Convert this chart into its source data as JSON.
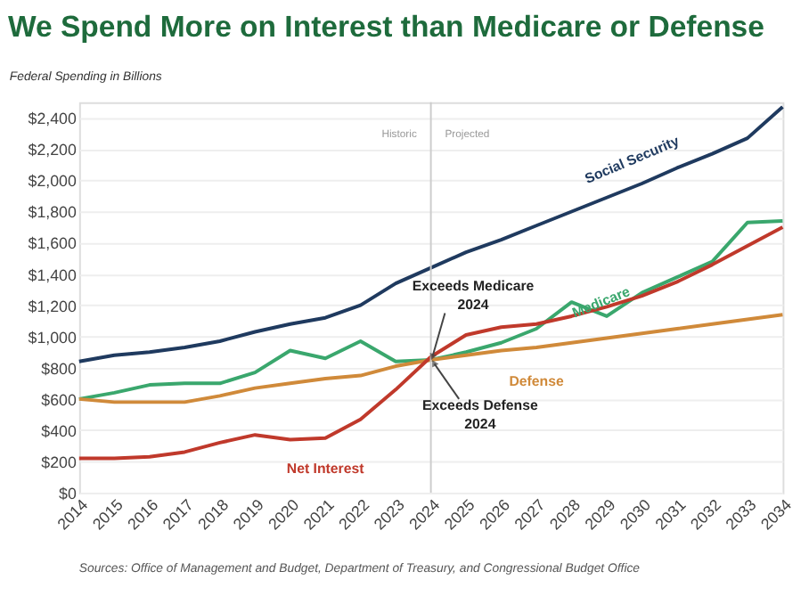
{
  "chart_data": {
    "type": "line",
    "title": "We Spend More on Interest than Medicare or Defense",
    "ylabel": "Federal Spending in Billions",
    "x": [
      2014,
      2015,
      2016,
      2017,
      2018,
      2019,
      2020,
      2021,
      2022,
      2023,
      2024,
      2025,
      2026,
      2027,
      2028,
      2029,
      2030,
      2031,
      2032,
      2033,
      2034
    ],
    "series": [
      {
        "name": "Social Security",
        "color": "#1f3a5f",
        "values": [
          840,
          880,
          900,
          930,
          970,
          1030,
          1080,
          1120,
          1200,
          1340,
          1440,
          1540,
          1620,
          1710,
          1800,
          1890,
          1980,
          2080,
          2170,
          2270,
          2470
        ]
      },
      {
        "name": "Medicare",
        "color": "#3aa76d",
        "values": [
          600,
          640,
          690,
          700,
          700,
          770,
          910,
          860,
          970,
          840,
          850,
          900,
          960,
          1050,
          1220,
          1130,
          1280,
          1380,
          1480,
          1730,
          1740
        ]
      },
      {
        "name": "Defense",
        "color": "#d08a3a",
        "values": [
          600,
          580,
          580,
          580,
          620,
          670,
          700,
          730,
          750,
          810,
          850,
          880,
          910,
          930,
          960,
          990,
          1020,
          1050,
          1080,
          1110,
          1140
        ]
      },
      {
        "name": "Net Interest",
        "color": "#c0392b",
        "values": [
          220,
          220,
          230,
          260,
          320,
          370,
          340,
          350,
          470,
          660,
          870,
          1010,
          1060,
          1080,
          1130,
          1190,
          1260,
          1350,
          1460,
          1580,
          1700
        ]
      }
    ],
    "xlim": [
      2014,
      2034
    ],
    "xticks": [
      2014,
      2015,
      2016,
      2017,
      2018,
      2019,
      2020,
      2021,
      2022,
      2023,
      2024,
      2025,
      2026,
      2027,
      2028,
      2029,
      2030,
      2031,
      2032,
      2033,
      2034
    ],
    "ylim": [
      0,
      2500
    ],
    "yticks": [
      {
        "value": 0,
        "label": "$0"
      },
      {
        "value": 200,
        "label": "$200"
      },
      {
        "value": 400,
        "label": "$400"
      },
      {
        "value": 600,
        "label": "$600"
      },
      {
        "value": 800,
        "label": "$800"
      },
      {
        "value": 1000,
        "label": "$1,000"
      },
      {
        "value": 1200,
        "label": "$1,200"
      },
      {
        "value": 1400,
        "label": "$1,400"
      },
      {
        "value": 1600,
        "label": "$1,600"
      },
      {
        "value": 1800,
        "label": "$1,800"
      },
      {
        "value": 2000,
        "label": "$2,000"
      },
      {
        "value": 2200,
        "label": "$2,200"
      },
      {
        "value": 2400,
        "label": "$2,400"
      }
    ],
    "ref_lines": [
      {
        "axis": "x",
        "value": 2024,
        "color": "#cccccc"
      }
    ],
    "annotations": [
      "Historic",
      "Projected",
      {
        "text": "Exceeds Medicare\n2024",
        "x": 2024,
        "y": 850
      },
      {
        "text": "Exceeds Defense\n2024",
        "x": 2024,
        "y": 850
      },
      "Sources: Office of Management and Budget, Department of Treasury, and Congressional Budget Office"
    ],
    "grid": "y",
    "legend": false,
    "marker": "none",
    "line_style": "solid"
  }
}
